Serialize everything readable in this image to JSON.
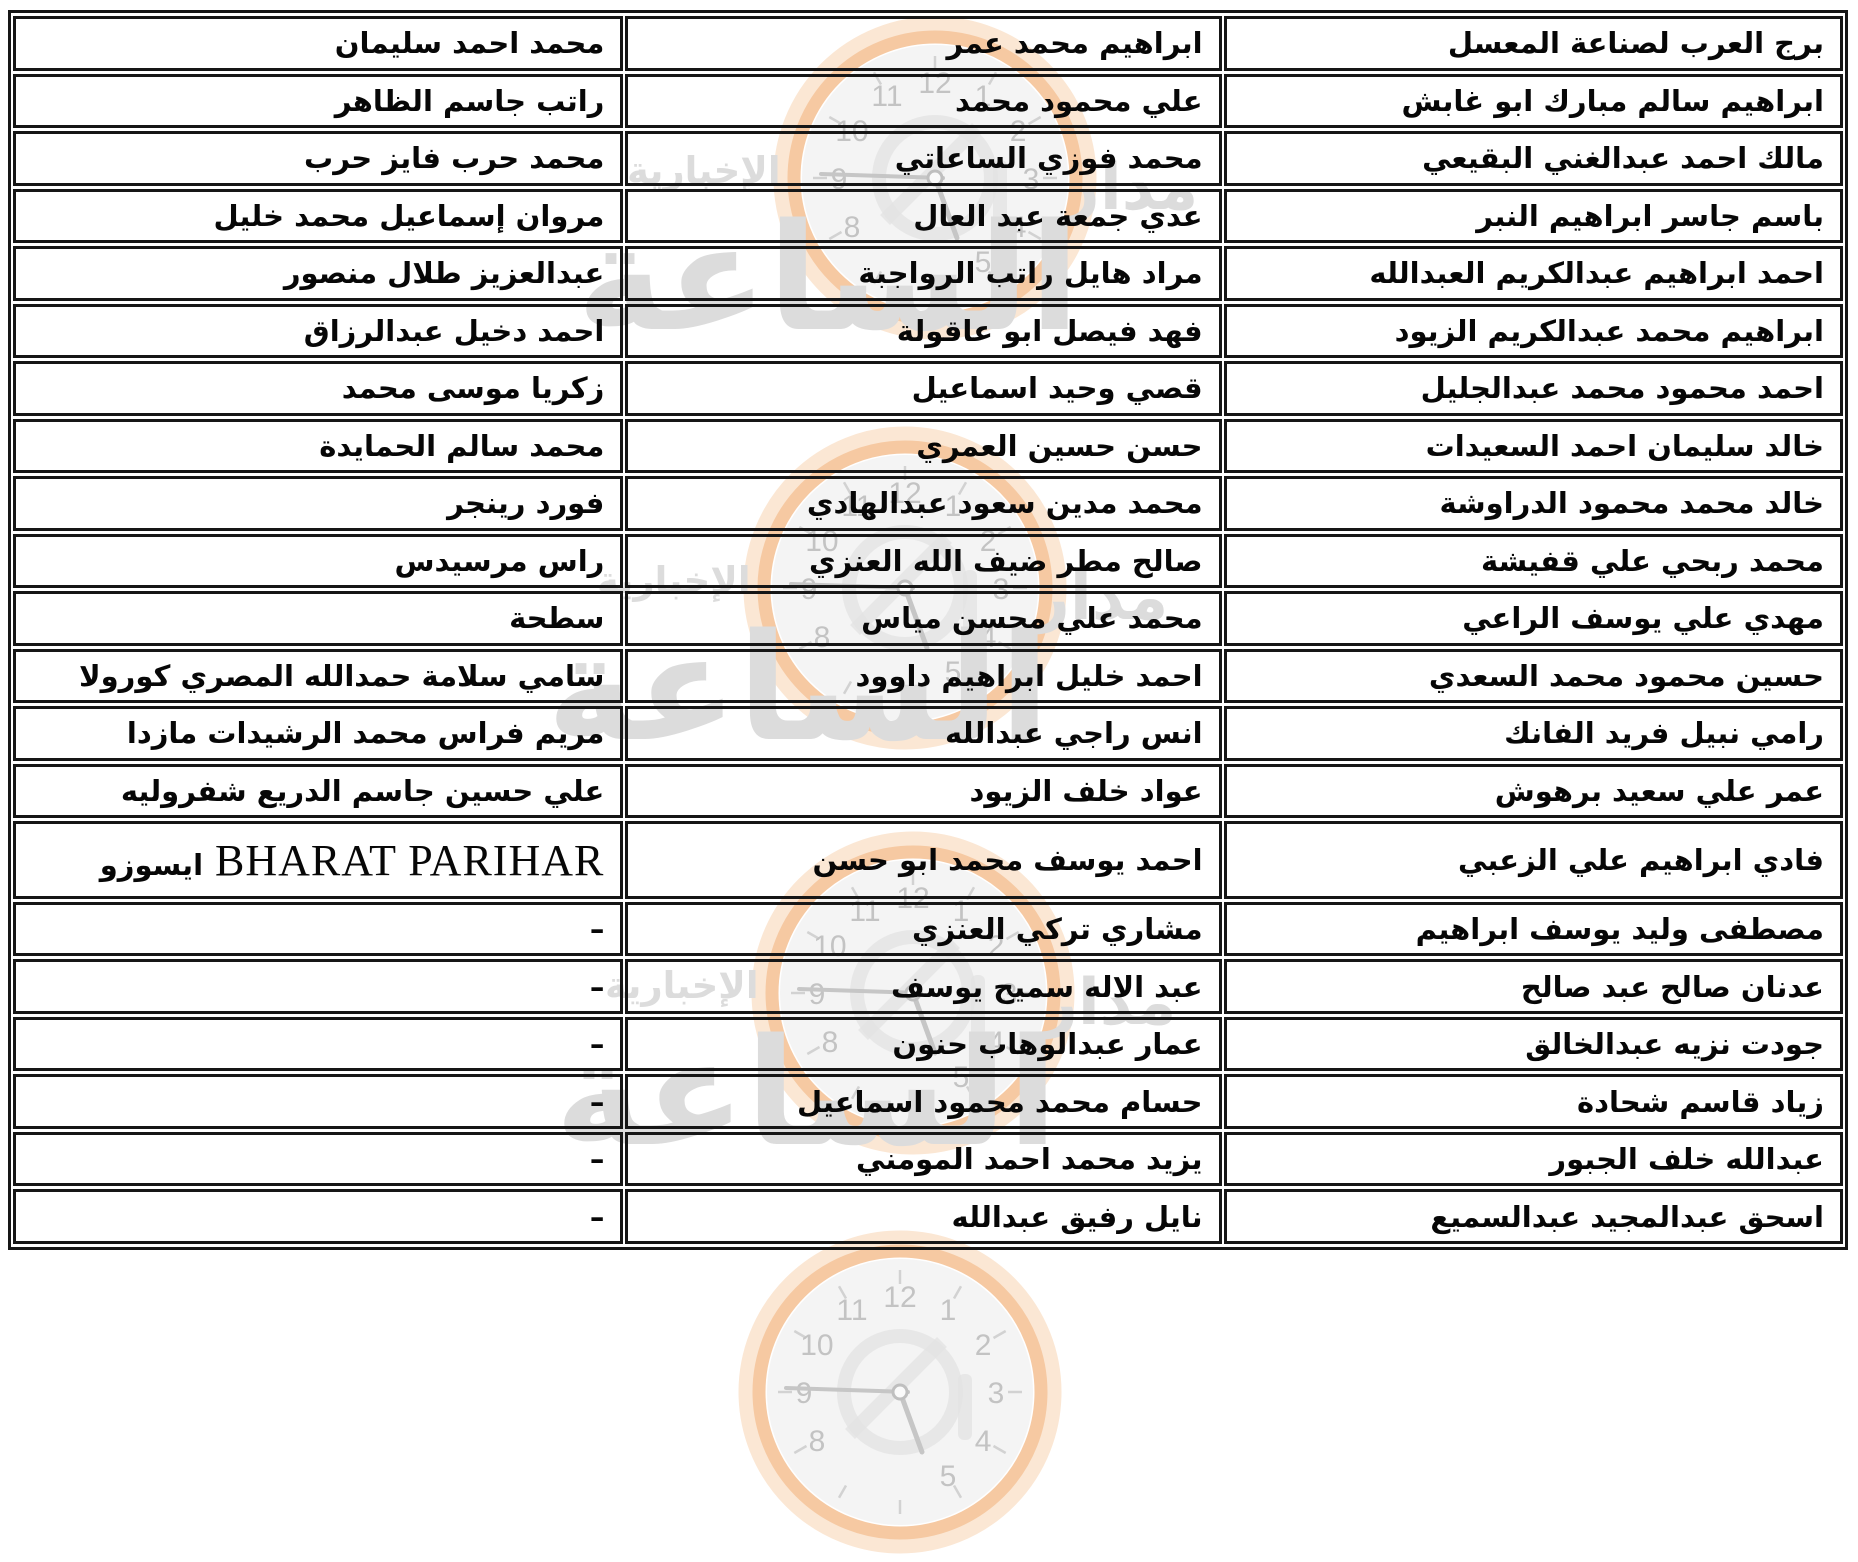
{
  "page": {
    "background": "#ffffff",
    "direction": "rtl"
  },
  "styles": {
    "border_color": "#161616",
    "cell_text_color": "#070707"
  },
  "table": {
    "columns": [
      "right",
      "middle",
      "left"
    ],
    "rows": [
      {
        "right": "برج العرب لصناعة المعسل",
        "middle": "ابراهيم محمد عمر",
        "left": "محمد احمد سليمان"
      },
      {
        "right": "ابراهيم سالم مبارك ابو غابش",
        "middle": "علي محمود محمد",
        "left": "راتب جاسم الظاهر"
      },
      {
        "right": "مالك احمد عبدالغني البقيعي",
        "middle": "محمد فوزي الساعاتي",
        "left": "محمد حرب فايز حرب"
      },
      {
        "right": "باسم جاسر ابراهيم النبر",
        "middle": "عدي جمعة عبد العال",
        "left": "مروان إسماعيل محمد خليل"
      },
      {
        "right": "احمد ابراهيم عبدالكريم العبدالله",
        "middle": "مراد هايل راتب الرواجبة",
        "left": "عبدالعزيز طلال منصور"
      },
      {
        "right": "ابراهيم محمد عبدالكريم الزيود",
        "middle": "فهد فيصل ابو عاقولة",
        "left": "احمد دخيل عبدالرزاق"
      },
      {
        "right": "احمد محمود محمد عبدالجليل",
        "middle": "قصي وحيد اسماعيل",
        "left": "زكريا موسى محمد"
      },
      {
        "right": "خالد سليمان احمد السعيدات",
        "middle": "حسن حسين العمري",
        "left": "محمد سالم الحمايدة"
      },
      {
        "right": "خالد محمد محمود الدراوشة",
        "middle": "محمد مدين سعود عبدالهادي",
        "left": "فورد رينجر"
      },
      {
        "right": "محمد ربحي علي قفيشة",
        "middle": "صالح مطر ضيف الله العنزي",
        "left": "راس مرسيدس"
      },
      {
        "right": "مهدي علي يوسف الراعي",
        "middle": "محمد علي محسن مياس",
        "left": "سطحة"
      },
      {
        "right": "حسين محمود محمد السعدي",
        "middle": "احمد خليل ابراهيم داوود",
        "left": "سامي سلامة حمدالله المصري كورولا"
      },
      {
        "right": "رامي نبيل فريد الفانك",
        "middle": "انس راجي عبدالله",
        "left": "مريم فراس محمد الرشيدات مازدا"
      },
      {
        "right": "عمر علي سعيد برهوش",
        "middle": "عواد خلف الزيود",
        "left": "علي حسين جاسم الدريع شفروليه"
      },
      {
        "right": "فادي ابراهيم علي الزعبي",
        "middle": "احمد يوسف محمد ابو حسن",
        "left": "BHARAT PARIHAR ايسوزو"
      },
      {
        "right": "مصطفى وليد يوسف ابراهيم",
        "middle": "مشاري تركي العنزي",
        "left": "–"
      },
      {
        "right": "عدنان صالح عبد صالح",
        "middle": "عبد الاله سميح يوسف",
        "left": "–"
      },
      {
        "right": "جودت نزيه عبدالخالق",
        "middle": "عمار عبدالوهاب حنون",
        "left": "–"
      },
      {
        "right": "زياد قاسم شحادة",
        "middle": "حسام محمد محمود اسماعيل",
        "left": "–"
      },
      {
        "right": "عبدالله خلف الجبور",
        "middle": "يزيد محمد احمد المومني",
        "left": "–"
      },
      {
        "right": "اسحق عبدالمجيد عبدالسميع",
        "middle": "نايل رفيق عبدالله",
        "left": "–"
      }
    ]
  },
  "watermark": {
    "brand_word_right": "مدار",
    "brand_word_main": "الساعة",
    "tagline": "الإخبارية",
    "clock_numbers": [
      "12",
      "1",
      "2",
      "3",
      "4",
      "5",
      "8",
      "9",
      "10",
      "11"
    ],
    "ring_color": "#f6c9a2",
    "glow_color": "#fbe7d4",
    "face_color": "#f2f2f2",
    "number_color": "#c3c3c3",
    "text_color": "#dcdcdc"
  }
}
